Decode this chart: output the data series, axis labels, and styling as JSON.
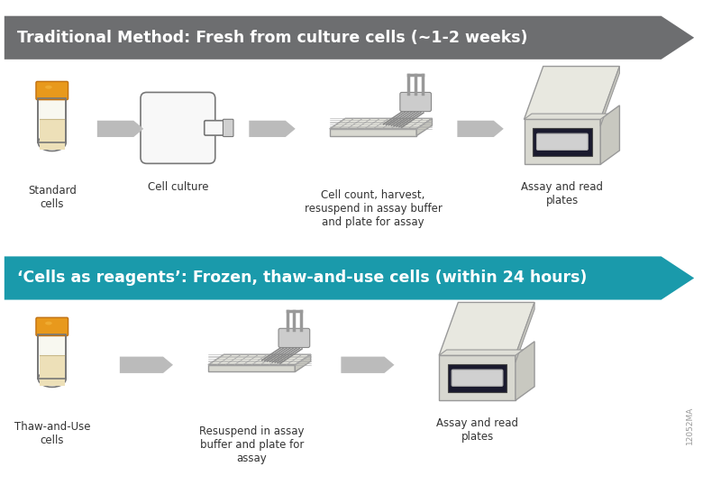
{
  "bg_color": "#ffffff",
  "arrow1_color": "#6d6e70",
  "arrow2_color": "#1a9aab",
  "arrow1_text": "Traditional Method: Fresh from culture cells (~1-2 weeks)",
  "arrow2_text": "‘Cells as reagents’: Frozen, thaw-and-use cells (within 24 hours)",
  "arrow_text_color": "#ffffff",
  "arrow_text_size": 12.5,
  "row1_labels": [
    "Standard\ncells",
    "Cell culture",
    "Cell count, harvest,\nresuspend in assay buffer\nand plate for assay",
    "Assay and read\nplates"
  ],
  "row2_labels": [
    "Thaw-and-Use\ncells",
    "Resuspend in assay\nbuffer and plate for\nassay",
    "Assay and read\nplates"
  ],
  "label_color": "#333333",
  "label_size": 8.5,
  "small_arrow_color": "#bbbbbb",
  "watermark": "12052MA",
  "watermark_color": "#999999",
  "watermark_size": 6.5,
  "tube_cap_color": "#e8991c",
  "tube_body_color": "#f5f0dc",
  "tube_liquid_color": "#ede0b8",
  "tube_outline": "#777777",
  "flask_color": "#f8f8f8",
  "flask_outline": "#777777",
  "plate_color": "#e8e8e8",
  "plate_outline": "#888888",
  "box_color": "#e0e0e0",
  "box_dark": "#1a1a2a",
  "box_plate": "#c8c8c8"
}
